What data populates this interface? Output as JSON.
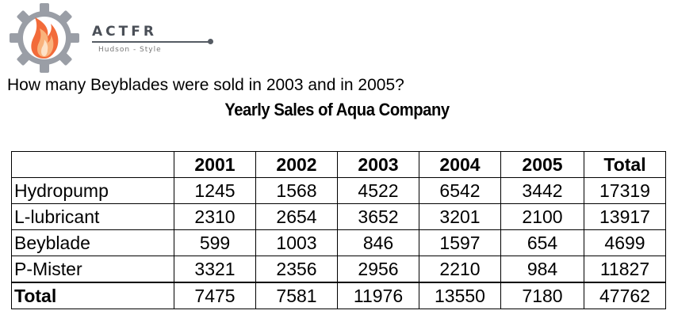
{
  "logo": {
    "brand": "ACTFR",
    "tagline": "Hudson - Style",
    "icon": "gear-flame-icon"
  },
  "question": "How many Beyblades were sold in 2003 and in 2005?",
  "table": {
    "title": "Yearly Sales of Aqua Company",
    "headers": [
      "",
      "2001",
      "2002",
      "2003",
      "2004",
      "2005",
      "Total"
    ],
    "rows": [
      {
        "label": "Hydropump",
        "values": [
          "1245",
          "1568",
          "4522",
          "6542",
          "3442",
          "17319"
        ]
      },
      {
        "label": "L-lubricant",
        "values": [
          "2310",
          "2654",
          "3652",
          "3201",
          "2100",
          "13917"
        ]
      },
      {
        "label": "Beyblade",
        "values": [
          "599",
          "1003",
          "846",
          "1597",
          "654",
          "4699"
        ]
      },
      {
        "label": "P-Mister",
        "values": [
          "3321",
          "2356",
          "2956",
          "2210",
          "984",
          "11827"
        ]
      }
    ],
    "total": {
      "label": "Total",
      "values": [
        "7475",
        "7581",
        "11976",
        "13550",
        "7180",
        "47762"
      ]
    }
  }
}
